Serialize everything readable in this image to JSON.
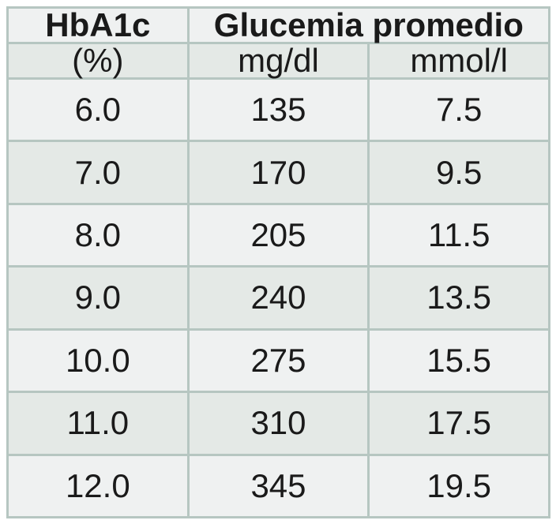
{
  "table": {
    "header_group": {
      "col1": "HbA1c",
      "col23": "Glucemia promedio"
    },
    "units": [
      "(%)",
      "mg/dl",
      "mmol/l"
    ],
    "rows": [
      [
        "6.0",
        "135",
        "7.5"
      ],
      [
        "7.0",
        "170",
        "9.5"
      ],
      [
        "8.0",
        "205",
        "11.5"
      ],
      [
        "9.0",
        "240",
        "13.5"
      ],
      [
        "10.0",
        "275",
        "15.5"
      ],
      [
        "11.0",
        "310",
        "17.5"
      ],
      [
        "12.0",
        "345",
        "19.5"
      ]
    ]
  },
  "colors": {
    "page-bg": "#ffffff",
    "border": "#b6c6c1",
    "row-light": "#eff1f1",
    "row-dark": "#e4e9e6",
    "text": "#1a1a1a"
  },
  "chart_data": {
    "type": "table",
    "column_groups": [
      {
        "label": "HbA1c",
        "span": 1
      },
      {
        "label": "Glucemia promedio",
        "span": 2
      }
    ],
    "columns": [
      "HbA1c (%)",
      "Glucemia promedio mg/dl",
      "Glucemia promedio mmol/l"
    ],
    "rows": [
      [
        6.0,
        135,
        7.5
      ],
      [
        7.0,
        170,
        9.5
      ],
      [
        8.0,
        205,
        11.5
      ],
      [
        9.0,
        240,
        13.5
      ],
      [
        10.0,
        275,
        15.5
      ],
      [
        11.0,
        310,
        17.5
      ],
      [
        12.0,
        345,
        19.5
      ]
    ]
  }
}
